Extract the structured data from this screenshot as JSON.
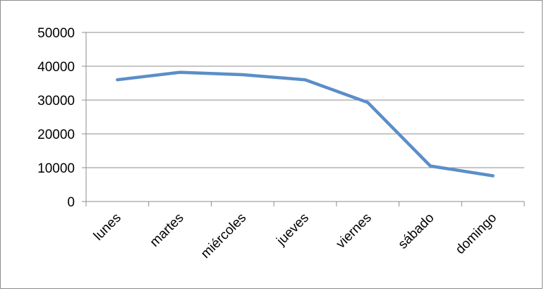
{
  "chart_data": {
    "type": "line",
    "title": "",
    "xlabel": "",
    "ylabel": "",
    "categories": [
      "lunes",
      "martes",
      "miércoles",
      "jueves",
      "viernes",
      "sábado",
      "domingo"
    ],
    "series": [
      {
        "values": [
          36000,
          38200,
          37500,
          36000,
          29300,
          10500,
          7600
        ]
      }
    ],
    "yticks": [
      "0",
      "10000",
      "20000",
      "30000",
      "40000",
      "50000"
    ],
    "ylim": [
      0,
      50000
    ],
    "grid": true,
    "legend": "none",
    "colors": {
      "series": "#5b8ec9",
      "grid": "#8c8c8c",
      "axis": "#8c8c8c"
    }
  }
}
